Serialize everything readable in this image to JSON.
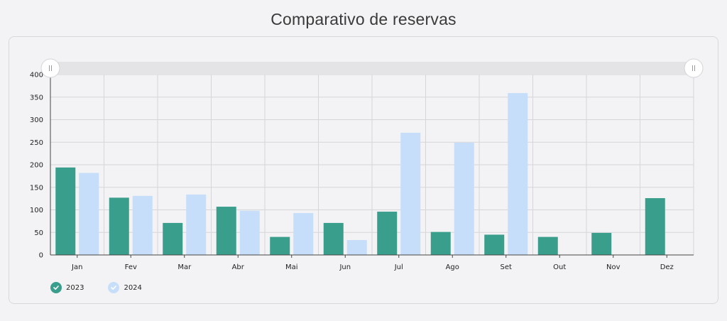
{
  "page": {
    "title": "Comparativo de reservas"
  },
  "colors": {
    "series_2023": "#3a9e8c",
    "series_2024": "#c6def9"
  },
  "icons": {
    "legend_marker": "check-icon",
    "scroll_handle": "grip-icon"
  },
  "chart_data": {
    "type": "bar",
    "title": "Comparativo de reservas",
    "categories": [
      "Jan",
      "Fev",
      "Mar",
      "Abr",
      "Mai",
      "Jun",
      "Jul",
      "Ago",
      "Set",
      "Out",
      "Nov",
      "Dez"
    ],
    "series": [
      {
        "name": "2023",
        "values": [
          194,
          127,
          71,
          107,
          40,
          71,
          96,
          51,
          45,
          40,
          49,
          126
        ]
      },
      {
        "name": "2024",
        "values": [
          182,
          131,
          134,
          98,
          93,
          33,
          271,
          249,
          359,
          null,
          null,
          null
        ]
      }
    ],
    "ylim": [
      0,
      400
    ],
    "yticks": [
      0,
      50,
      100,
      150,
      200,
      250,
      300,
      350,
      400
    ],
    "grid": true,
    "legend_position": "bottom-left",
    "scrollbar": {
      "start": 0,
      "end": 1
    }
  }
}
